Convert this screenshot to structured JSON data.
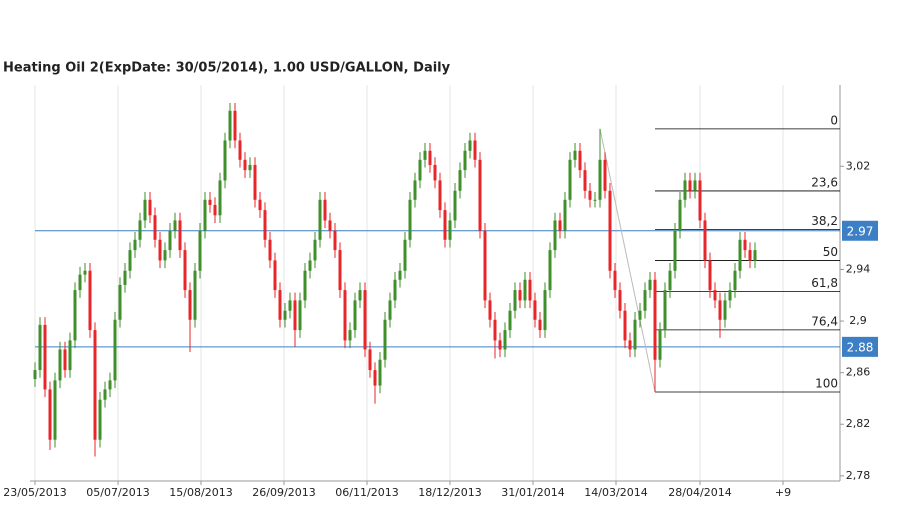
{
  "chart_data": {
    "type": "candlestick",
    "title": "Heating Oil 2(ExpDate: 30/05/2014), 1.00 USD/GALLON, Daily",
    "up_color": "#3f8f2b",
    "down_color": "#e8262a",
    "line_color": "#3d7fc4",
    "fib_color": "#000000",
    "xlim": [
      -1,
      161
    ],
    "ylim": [
      2.776,
      3.083
    ],
    "xticks": [
      {
        "value": 0,
        "label": "23/05/2013"
      },
      {
        "value": 16.6,
        "label": "05/07/2013"
      },
      {
        "value": 33.2,
        "label": "15/08/2013"
      },
      {
        "value": 49.8,
        "label": "26/09/2013"
      },
      {
        "value": 66.4,
        "label": "06/11/2013"
      },
      {
        "value": 83,
        "label": "18/12/2013"
      },
      {
        "value": 99.6,
        "label": "31/01/2014"
      },
      {
        "value": 116.2,
        "label": "14/03/2014"
      },
      {
        "value": 133,
        "label": "28/04/2014"
      },
      {
        "value": 149.6,
        "label": "+9"
      }
    ],
    "yticks": [
      {
        "value": 2.78,
        "label": "2,78"
      },
      {
        "value": 2.82,
        "label": "2,82"
      },
      {
        "value": 2.86,
        "label": "2,86"
      },
      {
        "value": 2.9,
        "label": "2,9"
      },
      {
        "value": 2.94,
        "label": "2,94"
      },
      {
        "value": 3.02,
        "label": "3,02"
      }
    ],
    "grid": true,
    "hlines": [
      2.97,
      2.88
    ],
    "fib": {
      "high": 3.049,
      "low": 2.845,
      "start_x": 113,
      "end_x": 124,
      "levels": [
        0,
        {
          "value": 23.6,
          "label": "23,6"
        },
        {
          "value": 38.2,
          "label": "38,2"
        },
        50,
        {
          "value": 61.8,
          "label": "61,8"
        },
        {
          "value": 76.4,
          "label": "76,4"
        },
        100
      ]
    },
    "x": [
      0,
      1,
      2,
      3,
      4,
      5,
      6,
      7,
      8,
      9,
      10,
      11,
      12,
      13,
      14,
      15,
      16,
      17,
      18,
      19,
      20,
      21,
      22,
      23,
      24,
      25,
      26,
      27,
      28,
      29,
      30,
      31,
      32,
      33,
      34,
      35,
      36,
      37,
      38,
      39,
      40,
      41,
      42,
      43,
      44,
      45,
      46,
      47,
      48,
      49,
      50,
      51,
      52,
      53,
      54,
      55,
      56,
      57,
      58,
      59,
      60,
      61,
      62,
      63,
      64,
      65,
      66,
      67,
      68,
      69,
      70,
      71,
      72,
      73,
      74,
      75,
      76,
      77,
      78,
      79,
      80,
      81,
      82,
      83,
      84,
      85,
      86,
      87,
      88,
      89,
      90,
      91,
      92,
      93,
      94,
      95,
      96,
      97,
      98,
      99,
      100,
      101,
      102,
      103,
      104,
      105,
      106,
      107,
      108,
      109,
      110,
      111,
      112,
      113,
      114,
      115,
      116,
      117,
      118,
      119,
      120,
      121,
      122,
      123,
      124,
      125,
      126,
      127,
      128,
      129,
      130,
      131,
      132,
      133,
      134,
      135,
      136,
      137,
      138,
      139,
      140,
      141,
      142,
      143,
      144
    ],
    "open": [
      2.855,
      2.862,
      2.897,
      2.847,
      2.808,
      2.854,
      2.878,
      2.862,
      2.885,
      2.924,
      2.936,
      2.939,
      2.893,
      2.808,
      2.839,
      2.847,
      2.854,
      2.901,
      2.928,
      2.939,
      2.955,
      2.963,
      2.978,
      2.994,
      2.982,
      2.963,
      2.947,
      2.955,
      2.97,
      2.978,
      2.955,
      2.924,
      2.901,
      2.939,
      2.97,
      2.994,
      2.99,
      2.982,
      3.009,
      3.04,
      3.063,
      3.04,
      3.025,
      3.017,
      3.021,
      2.994,
      2.986,
      2.963,
      2.947,
      2.924,
      2.901,
      2.908,
      2.916,
      2.893,
      2.916,
      2.939,
      2.947,
      2.963,
      2.994,
      2.978,
      2.97,
      2.955,
      2.924,
      2.885,
      2.893,
      2.916,
      2.924,
      2.878,
      2.862,
      2.85,
      2.87,
      2.901,
      2.916,
      2.932,
      2.939,
      2.963,
      2.994,
      3.009,
      3.025,
      3.032,
      3.021,
      3.009,
      2.986,
      2.963,
      2.978,
      3.001,
      3.017,
      3.032,
      3.04,
      3.025,
      2.97,
      2.916,
      2.901,
      2.885,
      2.878,
      2.893,
      2.908,
      2.924,
      2.916,
      2.932,
      2.916,
      2.901,
      2.893,
      2.924,
      2.955,
      2.978,
      2.97,
      2.994,
      3.025,
      3.032,
      3.017,
      3.001,
      2.994,
      2.994,
      3.025,
      3.001,
      2.939,
      2.924,
      2.908,
      2.885,
      2.878,
      2.901,
      2.908,
      2.924,
      2.932,
      2.87,
      2.893,
      2.924,
      2.939,
      2.97,
      2.994,
      3.009,
      3.001,
      3.009,
      2.978,
      2.947,
      2.924,
      2.916,
      2.901,
      2.916,
      2.924,
      2.939,
      2.963,
      2.955,
      2.947
    ],
    "high": [
      2.868,
      2.903,
      2.903,
      2.853,
      2.86,
      2.884,
      2.884,
      2.891,
      2.93,
      2.942,
      2.945,
      2.945,
      2.899,
      2.845,
      2.853,
      2.86,
      2.907,
      2.934,
      2.945,
      2.961,
      2.969,
      2.984,
      3.0,
      3.0,
      2.988,
      2.969,
      2.961,
      2.976,
      2.984,
      2.984,
      2.961,
      2.93,
      2.945,
      2.976,
      3.0,
      3.0,
      2.996,
      3.015,
      3.046,
      3.069,
      3.069,
      3.046,
      3.031,
      3.027,
      3.027,
      3.0,
      2.992,
      2.969,
      2.953,
      2.93,
      2.914,
      2.922,
      2.922,
      2.922,
      2.945,
      2.953,
      2.969,
      3.0,
      3.0,
      2.984,
      2.976,
      2.961,
      2.93,
      2.899,
      2.922,
      2.93,
      2.93,
      2.884,
      2.868,
      2.876,
      2.907,
      2.922,
      2.938,
      2.945,
      2.969,
      3.0,
      3.015,
      3.031,
      3.038,
      3.038,
      3.027,
      3.015,
      2.992,
      2.984,
      3.007,
      3.023,
      3.038,
      3.046,
      3.046,
      3.031,
      2.976,
      2.922,
      2.907,
      2.891,
      2.899,
      2.914,
      2.93,
      2.93,
      2.938,
      2.938,
      2.922,
      2.907,
      2.93,
      2.961,
      2.984,
      2.984,
      3.0,
      3.031,
      3.038,
      3.038,
      3.023,
      3.007,
      3.0,
      3.049,
      3.031,
      3.007,
      2.945,
      2.93,
      2.914,
      2.891,
      2.907,
      2.914,
      2.93,
      2.938,
      2.938,
      2.899,
      2.93,
      2.945,
      2.976,
      3.0,
      3.015,
      3.015,
      3.015,
      3.015,
      2.984,
      2.953,
      2.93,
      2.922,
      2.922,
      2.93,
      2.945,
      2.969,
      2.969,
      2.961,
      2.961
    ],
    "low": [
      2.849,
      2.856,
      2.841,
      2.8,
      2.802,
      2.848,
      2.856,
      2.856,
      2.879,
      2.918,
      2.93,
      2.887,
      2.795,
      2.802,
      2.833,
      2.841,
      2.848,
      2.895,
      2.922,
      2.933,
      2.949,
      2.957,
      2.972,
      2.976,
      2.957,
      2.941,
      2.941,
      2.949,
      2.964,
      2.949,
      2.918,
      2.876,
      2.895,
      2.933,
      2.964,
      2.984,
      2.976,
      2.976,
      3.003,
      3.034,
      3.034,
      3.019,
      3.011,
      3.011,
      2.988,
      2.98,
      2.957,
      2.941,
      2.918,
      2.895,
      2.895,
      2.902,
      2.88,
      2.887,
      2.91,
      2.933,
      2.941,
      2.957,
      2.972,
      2.964,
      2.949,
      2.918,
      2.879,
      2.879,
      2.887,
      2.91,
      2.872,
      2.856,
      2.836,
      2.844,
      2.864,
      2.895,
      2.91,
      2.926,
      2.933,
      2.957,
      2.988,
      3.003,
      3.019,
      3.015,
      3.003,
      2.98,
      2.957,
      2.957,
      2.972,
      2.995,
      3.011,
      3.026,
      3.019,
      2.964,
      2.91,
      2.895,
      2.871,
      2.872,
      2.872,
      2.887,
      2.902,
      2.91,
      2.91,
      2.91,
      2.895,
      2.887,
      2.887,
      2.918,
      2.949,
      2.964,
      2.964,
      2.988,
      3.019,
      3.011,
      2.995,
      2.988,
      2.988,
      2.988,
      2.995,
      2.933,
      2.918,
      2.902,
      2.879,
      2.872,
      2.872,
      2.895,
      2.902,
      2.918,
      2.845,
      2.864,
      2.887,
      2.918,
      2.933,
      2.964,
      2.988,
      2.995,
      2.995,
      2.972,
      2.941,
      2.918,
      2.91,
      2.887,
      2.895,
      2.91,
      2.918,
      2.933,
      2.949,
      2.941,
      2.941
    ],
    "close": [
      2.862,
      2.897,
      2.847,
      2.808,
      2.854,
      2.878,
      2.862,
      2.885,
      2.924,
      2.936,
      2.939,
      2.893,
      2.808,
      2.839,
      2.847,
      2.854,
      2.901,
      2.928,
      2.939,
      2.955,
      2.963,
      2.978,
      2.994,
      2.982,
      2.963,
      2.947,
      2.955,
      2.97,
      2.978,
      2.955,
      2.924,
      2.901,
      2.939,
      2.97,
      2.994,
      2.99,
      2.982,
      3.009,
      3.04,
      3.063,
      3.04,
      3.025,
      3.017,
      3.021,
      2.994,
      2.986,
      2.963,
      2.947,
      2.924,
      2.901,
      2.908,
      2.916,
      2.893,
      2.916,
      2.939,
      2.947,
      2.963,
      2.994,
      2.978,
      2.97,
      2.955,
      2.924,
      2.885,
      2.893,
      2.916,
      2.924,
      2.878,
      2.862,
      2.85,
      2.87,
      2.901,
      2.916,
      2.932,
      2.939,
      2.963,
      2.994,
      3.009,
      3.025,
      3.032,
      3.021,
      3.009,
      2.986,
      2.963,
      2.978,
      3.001,
      3.017,
      3.032,
      3.04,
      3.025,
      2.97,
      2.916,
      2.901,
      2.885,
      2.878,
      2.893,
      2.908,
      2.924,
      2.916,
      2.932,
      2.916,
      2.901,
      2.893,
      2.924,
      2.955,
      2.978,
      2.97,
      2.994,
      3.025,
      3.032,
      3.017,
      3.001,
      2.994,
      2.994,
      3.025,
      3.001,
      2.939,
      2.924,
      2.908,
      2.885,
      2.878,
      2.901,
      2.908,
      2.924,
      2.932,
      2.87,
      2.893,
      2.924,
      2.939,
      2.97,
      2.994,
      3.009,
      3.001,
      3.009,
      2.978,
      2.947,
      2.924,
      2.916,
      2.901,
      2.916,
      2.924,
      2.939,
      2.963,
      2.955,
      2.947,
      2.955
    ]
  }
}
